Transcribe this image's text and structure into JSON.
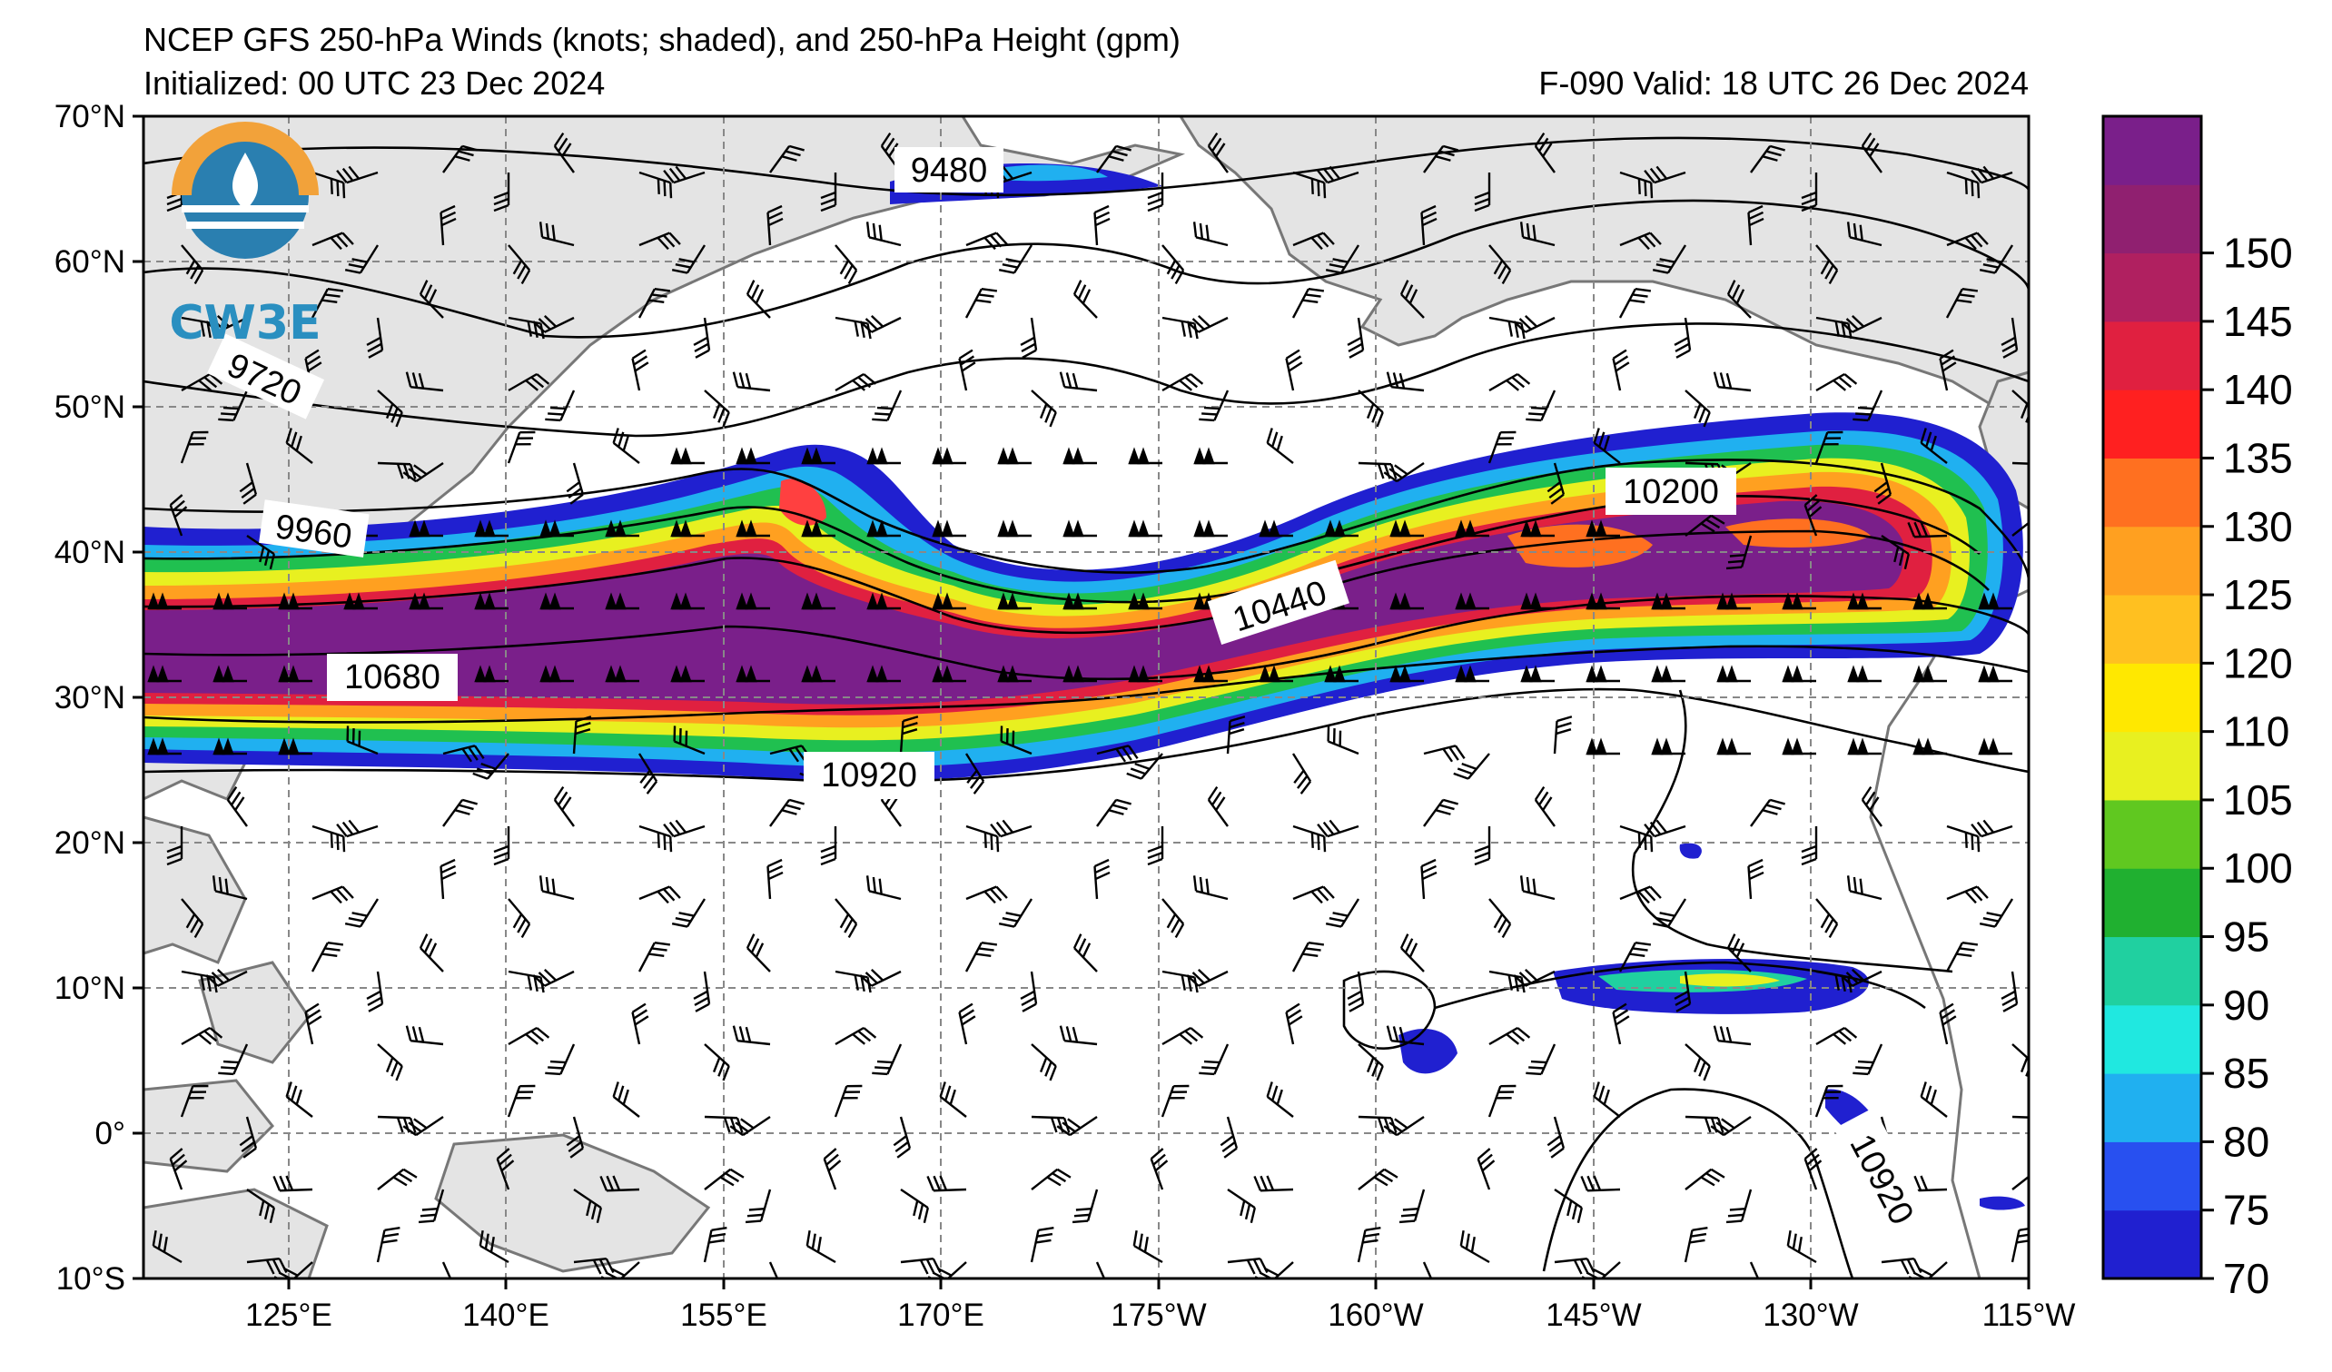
{
  "header": {
    "title": "NCEP GFS 250-hPa Winds (knots; shaded), and 250-hPa Height (gpm)",
    "initialized": "Initialized: 00 UTC 23 Dec 2024",
    "valid": "F-090  Valid: 18 UTC 26 Dec 2024"
  },
  "logo": {
    "text": "CW3E",
    "icon": "water-drop-sun-logo"
  },
  "axes": {
    "lat_labels": [
      "70°N",
      "60°N",
      "50°N",
      "40°N",
      "30°N",
      "20°N",
      "10°N",
      "0°",
      "10°S"
    ],
    "lon_labels": [
      "125°E",
      "140°E",
      "155°E",
      "170°E",
      "175°W",
      "160°W",
      "145°W",
      "130°W",
      "115°W"
    ],
    "lat_range": [
      -10,
      70
    ],
    "lon_range_east": [
      115,
      245
    ],
    "grid": true
  },
  "colorbar": {
    "ticks": [
      "70",
      "75",
      "80",
      "85",
      "90",
      "95",
      "100",
      "105",
      "110",
      "120",
      "125",
      "130",
      "135",
      "140",
      "145",
      "150"
    ],
    "colors": [
      "#2020d0",
      "#2850f0",
      "#20b0f0",
      "#20e8e0",
      "#20d0a0",
      "#20b030",
      "#60c820",
      "#e8f020",
      "#ffe800",
      "#ffc020",
      "#ffa020",
      "#ff7020",
      "#ff2020",
      "#e02040",
      "#b02060",
      "#902070",
      "#7a1f8a"
    ]
  },
  "contour_labels": [
    "9480",
    "9720",
    "9960",
    "10200",
    "10440",
    "10680",
    "10920",
    "10920"
  ]
}
